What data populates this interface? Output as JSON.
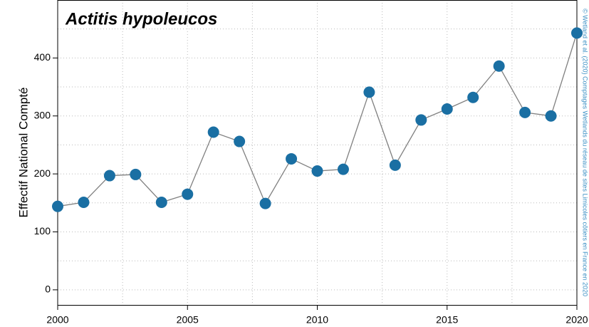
{
  "chart_data": {
    "type": "line",
    "title": "Actitis hypoleucos",
    "y_label": "Effectif National Compté",
    "credit": "© Wetland et al. (2020) Comptages Wetlands du réseau de sites Limicoles côtiers en France en 2020",
    "x": [
      2000,
      2001,
      2002,
      2003,
      2004,
      2005,
      2006,
      2007,
      2008,
      2009,
      2010,
      2011,
      2012,
      2013,
      2014,
      2015,
      2016,
      2017,
      2018,
      2019,
      2020
    ],
    "series": [
      {
        "name": "Actitis hypoleucos",
        "color": "#1a6fa3",
        "line_color": "#808080",
        "values": [
          144,
          151,
          197,
          199,
          151,
          165,
          272,
          256,
          149,
          226,
          205,
          208,
          341,
          215,
          293,
          312,
          332,
          386,
          306,
          300,
          443
        ]
      }
    ],
    "xlim": [
      2000,
      2020
    ],
    "ylim": [
      -26,
      500
    ],
    "xticks": [
      2000,
      2005,
      2010,
      2015,
      2020
    ],
    "yticks": [
      0,
      100,
      200,
      300,
      400
    ],
    "xgrid": [
      2002.5,
      2005,
      2007.5,
      2010,
      2012.5,
      2015,
      2017.5
    ],
    "ygrid": [
      0,
      50,
      100,
      150,
      200,
      250,
      300,
      350,
      400,
      450
    ],
    "grid": true
  }
}
